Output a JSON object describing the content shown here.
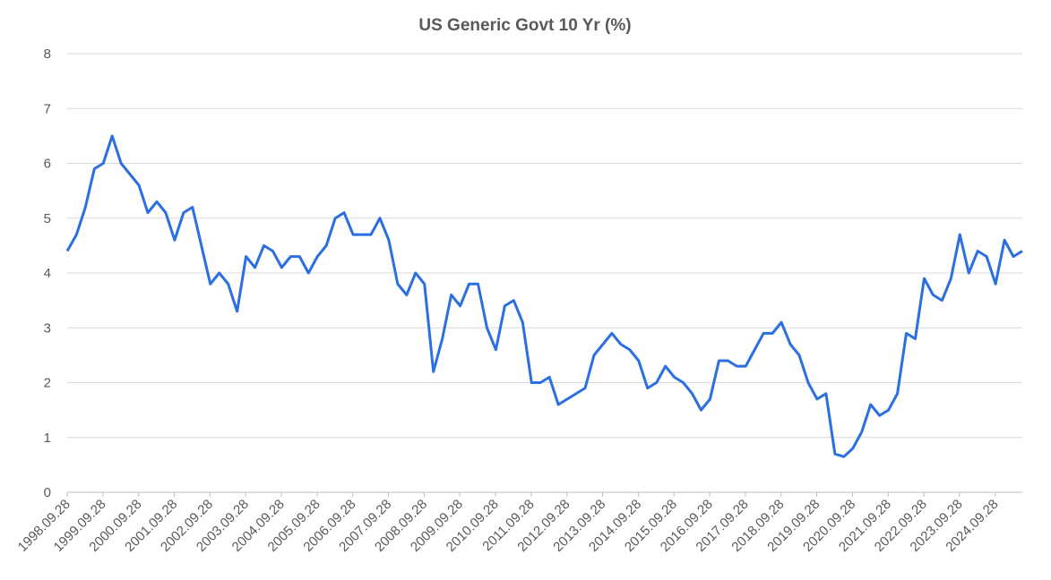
{
  "chart_data": {
    "type": "line",
    "title": "US Generic Govt 10 Yr (%)",
    "x": [
      1998.74,
      1999.0,
      1999.25,
      1999.5,
      1999.75,
      2000.0,
      2000.25,
      2000.5,
      2000.75,
      2001.0,
      2001.25,
      2001.5,
      2001.75,
      2002.0,
      2002.25,
      2002.5,
      2002.75,
      2003.0,
      2003.25,
      2003.5,
      2003.75,
      2004.0,
      2004.25,
      2004.5,
      2004.75,
      2005.0,
      2005.25,
      2005.5,
      2005.75,
      2006.0,
      2006.25,
      2006.5,
      2006.75,
      2007.0,
      2007.25,
      2007.5,
      2007.75,
      2008.0,
      2008.25,
      2008.5,
      2008.75,
      2009.0,
      2009.25,
      2009.5,
      2009.75,
      2010.0,
      2010.25,
      2010.5,
      2010.75,
      2011.0,
      2011.25,
      2011.5,
      2011.75,
      2012.0,
      2012.25,
      2012.5,
      2012.75,
      2013.0,
      2013.25,
      2013.5,
      2013.75,
      2014.0,
      2014.25,
      2014.5,
      2014.75,
      2015.0,
      2015.25,
      2015.5,
      2015.75,
      2016.0,
      2016.25,
      2016.5,
      2016.75,
      2017.0,
      2017.25,
      2017.5,
      2017.75,
      2018.0,
      2018.25,
      2018.5,
      2018.75,
      2019.0,
      2019.25,
      2019.5,
      2019.75,
      2020.0,
      2020.25,
      2020.5,
      2020.75,
      2021.0,
      2021.25,
      2021.5,
      2021.75,
      2022.0,
      2022.25,
      2022.5,
      2022.75,
      2023.0,
      2023.25,
      2023.5,
      2023.75,
      2024.0,
      2024.25,
      2024.5,
      2024.75,
      2025.0,
      2025.25,
      2025.5
    ],
    "series": [
      {
        "color": "#2b6fe0",
        "values": [
          4.4,
          4.7,
          5.2,
          5.9,
          6.0,
          6.5,
          6.0,
          5.8,
          5.6,
          5.1,
          5.3,
          5.1,
          4.6,
          5.1,
          5.2,
          4.5,
          3.8,
          4.0,
          3.8,
          3.3,
          4.3,
          4.1,
          4.5,
          4.4,
          4.1,
          4.3,
          4.3,
          4.0,
          4.3,
          4.5,
          5.0,
          5.1,
          4.7,
          4.7,
          4.7,
          5.0,
          4.6,
          3.8,
          3.6,
          4.0,
          3.8,
          2.2,
          2.8,
          3.6,
          3.4,
          3.8,
          3.8,
          3.0,
          2.6,
          3.4,
          3.5,
          3.1,
          2.0,
          2.0,
          2.1,
          1.6,
          1.7,
          1.8,
          1.9,
          2.5,
          2.7,
          2.9,
          2.7,
          2.6,
          2.4,
          1.9,
          2.0,
          2.3,
          2.1,
          2.0,
          1.8,
          1.5,
          1.7,
          2.4,
          2.4,
          2.3,
          2.3,
          2.6,
          2.9,
          2.9,
          3.1,
          2.7,
          2.5,
          2.0,
          1.7,
          1.8,
          0.7,
          0.65,
          0.8,
          1.1,
          1.6,
          1.4,
          1.5,
          1.8,
          2.9,
          2.8,
          3.9,
          3.6,
          3.5,
          3.9,
          4.7,
          4.0,
          4.4,
          4.3,
          3.8,
          4.6,
          4.3,
          4.4
        ]
      }
    ],
    "xlim": [
      1998.74,
      2025.5
    ],
    "xticks": [
      {
        "value": 1998.74,
        "label": "1998.09.28"
      },
      {
        "value": 1999.74,
        "label": "1999.09.28"
      },
      {
        "value": 2000.74,
        "label": "2000.09.28"
      },
      {
        "value": 2001.74,
        "label": "2001.09.28"
      },
      {
        "value": 2002.74,
        "label": "2002.09.28"
      },
      {
        "value": 2003.74,
        "label": "2003.09.28"
      },
      {
        "value": 2004.74,
        "label": "2004.09.28"
      },
      {
        "value": 2005.74,
        "label": "2005.09.28"
      },
      {
        "value": 2006.74,
        "label": "2006.09.28"
      },
      {
        "value": 2007.74,
        "label": "2007.09.28"
      },
      {
        "value": 2008.74,
        "label": "2008.09.28"
      },
      {
        "value": 2009.74,
        "label": "2009.09.28"
      },
      {
        "value": 2010.74,
        "label": "2010.09.28"
      },
      {
        "value": 2011.74,
        "label": "2011.09.28"
      },
      {
        "value": 2012.74,
        "label": "2012.09.28"
      },
      {
        "value": 2013.74,
        "label": "2013.09.28"
      },
      {
        "value": 2014.74,
        "label": "2014.09.28"
      },
      {
        "value": 2015.74,
        "label": "2015.09.28"
      },
      {
        "value": 2016.74,
        "label": "2016.09.28"
      },
      {
        "value": 2017.74,
        "label": "2017.09.28"
      },
      {
        "value": 2018.74,
        "label": "2018.09.28"
      },
      {
        "value": 2019.74,
        "label": "2019.09.28"
      },
      {
        "value": 2020.74,
        "label": "2020.09.28"
      },
      {
        "value": 2021.74,
        "label": "2021.09.28"
      },
      {
        "value": 2022.74,
        "label": "2022.09.28"
      },
      {
        "value": 2023.74,
        "label": "2023.09.28"
      },
      {
        "value": 2024.74,
        "label": "2024.09.28"
      }
    ],
    "ylim": [
      0,
      8
    ],
    "yticks": [
      0,
      1,
      2,
      3,
      4,
      5,
      6,
      7,
      8
    ],
    "grid": true
  }
}
